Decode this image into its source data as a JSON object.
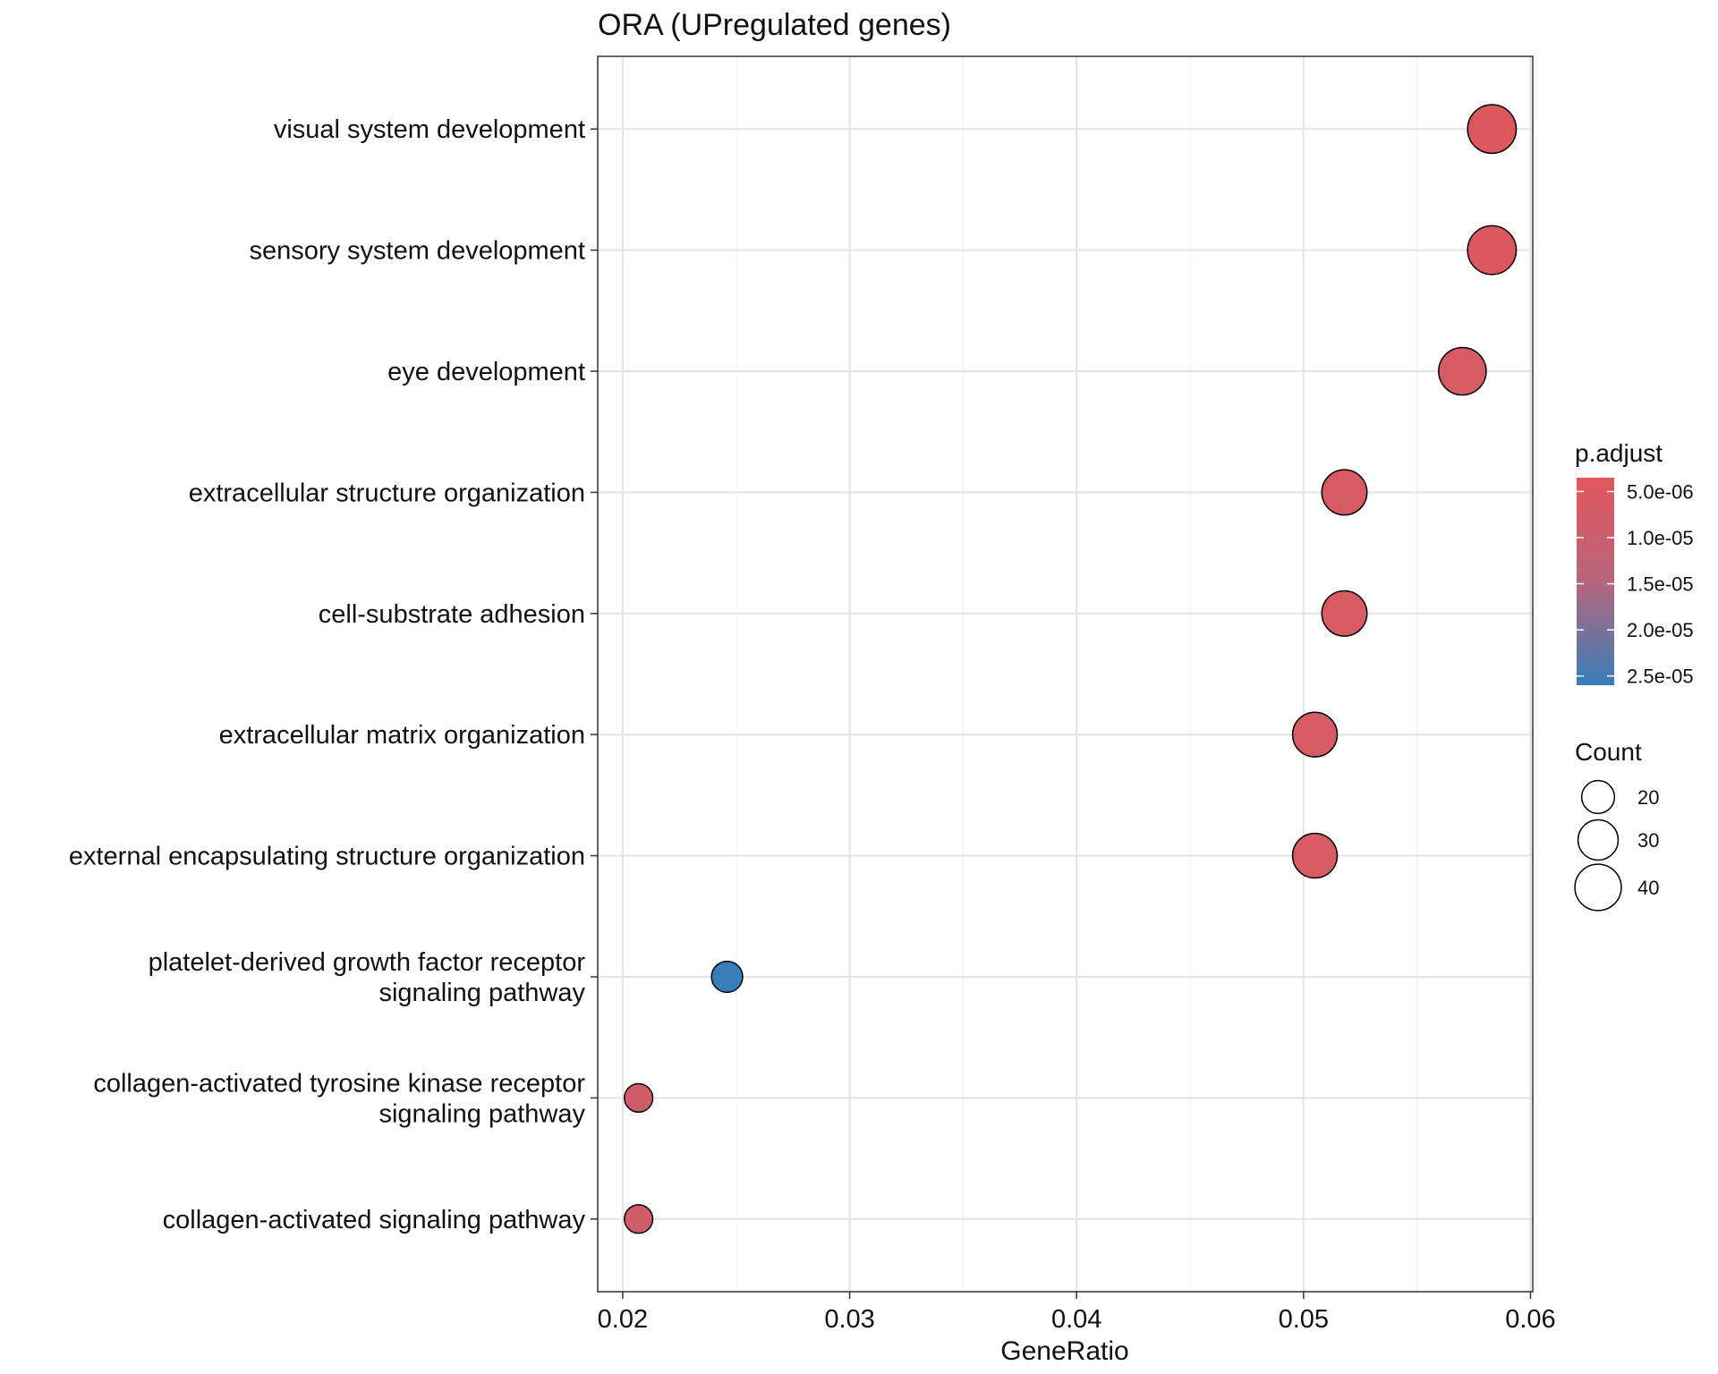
{
  "chart_data": {
    "type": "scatter",
    "title": "ORA (UPregulated genes)",
    "xlabel": "GeneRatio",
    "ylabel": "",
    "xlim": [
      0.0189,
      0.0601
    ],
    "xticks": [
      0.02,
      0.03,
      0.04,
      0.05,
      0.06
    ],
    "xtick_labels": [
      "0.02",
      "0.03",
      "0.04",
      "0.05",
      "0.06"
    ],
    "grid": true,
    "categories": [
      [
        "visual system development"
      ],
      [
        "sensory system development"
      ],
      [
        "eye development"
      ],
      [
        "extracellular structure organization"
      ],
      [
        "cell-substrate adhesion"
      ],
      [
        "extracellular matrix organization"
      ],
      [
        "external encapsulating structure organization"
      ],
      [
        "platelet-derived growth factor receptor",
        "signaling pathway"
      ],
      [
        "collagen-activated tyrosine kinase receptor",
        "signaling pathway"
      ],
      [
        "collagen-activated signaling pathway"
      ]
    ],
    "points": [
      {
        "gene_ratio": 0.0583,
        "count": 44,
        "p_adjust": 4e-06
      },
      {
        "gene_ratio": 0.0583,
        "count": 44,
        "p_adjust": 4e-06
      },
      {
        "gene_ratio": 0.057,
        "count": 42,
        "p_adjust": 5e-06
      },
      {
        "gene_ratio": 0.0518,
        "count": 38,
        "p_adjust": 5e-06
      },
      {
        "gene_ratio": 0.0518,
        "count": 38,
        "p_adjust": 5e-06
      },
      {
        "gene_ratio": 0.0505,
        "count": 37,
        "p_adjust": 5e-06
      },
      {
        "gene_ratio": 0.0505,
        "count": 37,
        "p_adjust": 5e-06
      },
      {
        "gene_ratio": 0.0246,
        "count": 18,
        "p_adjust": 2.6e-05
      },
      {
        "gene_ratio": 0.0207,
        "count": 15,
        "p_adjust": 6e-06
      },
      {
        "gene_ratio": 0.0207,
        "count": 15,
        "p_adjust": 6e-06
      }
    ],
    "color_legend": {
      "title": "p.adjust",
      "range": [
        3.5e-06,
        2.6e-05
      ],
      "ticks": [
        5e-06,
        1e-05,
        1.5e-05,
        2e-05,
        2.5e-05
      ],
      "tick_labels": [
        "5.0e-06",
        "1.0e-05",
        "1.5e-05",
        "2.0e-05",
        "2.5e-05"
      ],
      "low_color": "#e15759",
      "high_color": "#377eb8",
      "mid_color": "#8f74a0"
    },
    "size_legend": {
      "title": "Count",
      "values": [
        20,
        30,
        40
      ],
      "labels": [
        "20",
        "30",
        "40"
      ]
    }
  }
}
